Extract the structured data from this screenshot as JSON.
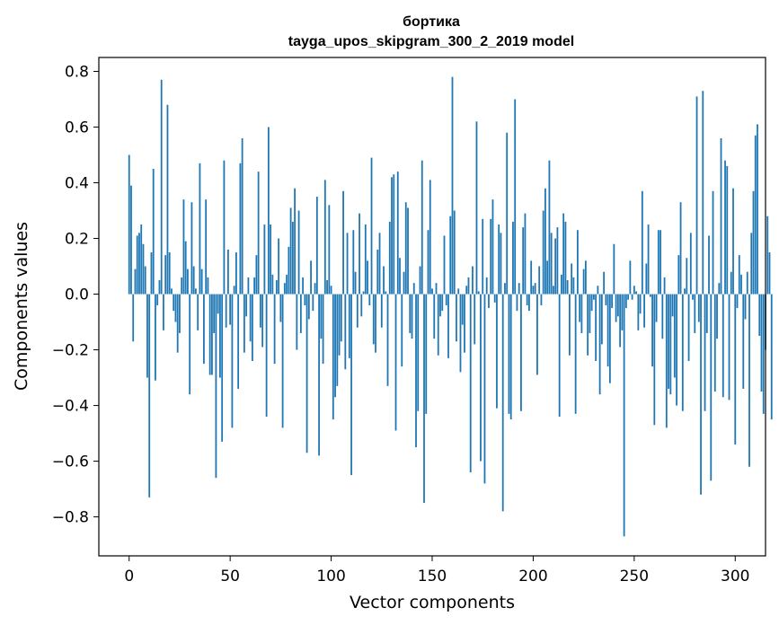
{
  "chart_data": {
    "type": "bar",
    "title": "бортика",
    "subtitle": "tayga_upos_skipgram_300_2_2019 model",
    "xlabel": "Vector components",
    "ylabel": "Components values",
    "xlim": [
      -15,
      315
    ],
    "ylim": [
      -0.94,
      0.85
    ],
    "xticks": [
      0,
      50,
      100,
      150,
      200,
      250,
      300
    ],
    "yticks": [
      -0.8,
      -0.6,
      -0.4,
      -0.2,
      0.0,
      0.2,
      0.4,
      0.6,
      0.8
    ],
    "xtick_labels": [
      "0",
      "50",
      "100",
      "150",
      "200",
      "250",
      "300"
    ],
    "ytick_labels": [
      "−0.8",
      "−0.6",
      "−0.4",
      "−0.2",
      "0.0",
      "0.2",
      "0.4",
      "0.6",
      "0.8"
    ],
    "grid": false,
    "bar_color": "#1f77b4",
    "values": [
      0.5,
      0.39,
      -0.17,
      0.09,
      0.21,
      0.22,
      0.25,
      0.18,
      0.1,
      -0.3,
      -0.73,
      0.15,
      0.45,
      -0.31,
      -0.04,
      0.05,
      0.77,
      -0.13,
      0.14,
      0.68,
      0.15,
      0.02,
      -0.06,
      -0.1,
      -0.21,
      -0.14,
      0.06,
      0.34,
      0.19,
      0.09,
      -0.36,
      0.33,
      0.1,
      0.02,
      -0.13,
      0.47,
      0.09,
      -0.25,
      0.34,
      0.06,
      -0.29,
      -0.29,
      -0.14,
      -0.66,
      -0.07,
      -0.3,
      -0.53,
      0.48,
      -0.12,
      0.16,
      -0.11,
      -0.48,
      0.03,
      0.15,
      -0.34,
      0.47,
      0.56,
      -0.21,
      -0.08,
      0.06,
      -0.17,
      -0.24,
      0.06,
      0.14,
      0.44,
      -0.12,
      -0.19,
      0.25,
      -0.44,
      0.6,
      0.25,
      0.07,
      -0.25,
      0.05,
      0.2,
      -0.1,
      -0.48,
      0.04,
      0.07,
      0.17,
      0.31,
      0.26,
      0.38,
      -0.2,
      0.3,
      -0.14,
      0.06,
      -0.04,
      -0.57,
      -0.09,
      0.12,
      -0.06,
      0.04,
      0.35,
      -0.58,
      -0.16,
      -0.25,
      0.41,
      0.05,
      0.32,
      0.03,
      -0.45,
      -0.37,
      -0.33,
      -0.22,
      -0.17,
      0.37,
      -0.27,
      0.22,
      -0.23,
      -0.65,
      0.23,
      0.08,
      -0.12,
      0.29,
      -0.08,
      0.01,
      0.25,
      0.12,
      -0.04,
      0.49,
      -0.18,
      -0.21,
      0.16,
      0.22,
      -0.12,
      0.1,
      0.01,
      -0.33,
      0.26,
      0.42,
      0.43,
      -0.49,
      0.44,
      0.13,
      -0.26,
      0.08,
      0.33,
      0.31,
      -0.14,
      -0.16,
      0.04,
      -0.55,
      -0.42,
      0.1,
      0.48,
      -0.75,
      -0.43,
      0.23,
      0.41,
      0.02,
      -0.16,
      0.04,
      -0.22,
      -0.08,
      -0.06,
      0.21,
      -0.04,
      -0.23,
      0.28,
      0.78,
      0.3,
      -0.17,
      0.02,
      -0.28,
      -0.11,
      -0.21,
      0.03,
      0.06,
      -0.64,
      0.1,
      -0.18,
      0.62,
      0.01,
      -0.6,
      0.27,
      -0.68,
      0.06,
      -0.05,
      0.27,
      0.34,
      -0.03,
      -0.41,
      0.25,
      0.22,
      -0.78,
      0.04,
      0.58,
      -0.43,
      -0.45,
      0.26,
      0.7,
      -0.06,
      0.04,
      -0.42,
      0.24,
      0.29,
      -0.04,
      -0.06,
      0.12,
      0.03,
      0.04,
      -0.29,
      0.1,
      -0.04,
      0.3,
      0.38,
      0.12,
      0.48,
      0.22,
      0.03,
      0.2,
      0.24,
      -0.44,
      0.07,
      0.29,
      0.26,
      0.05,
      -0.22,
      0.11,
      0.06,
      -0.43,
      0.23,
      -0.1,
      -0.14,
      0.09,
      0.12,
      -0.22,
      -0.14,
      -0.06,
      -0.02,
      -0.24,
      0.03,
      -0.36,
      -0.18,
      0.08,
      -0.04,
      -0.26,
      -0.32,
      -0.05,
      0.18,
      -0.1,
      -0.08,
      -0.19,
      -0.13,
      -0.87,
      -0.05,
      -0.02,
      0.12,
      -0.02,
      0.03,
      0.01,
      -0.13,
      -0.07,
      0.37,
      -0.12,
      0.11,
      0.25,
      -0.01,
      -0.26,
      -0.47,
      -0.1,
      0.23,
      0.23,
      -0.16,
      0.06,
      -0.48,
      -0.34,
      -0.36,
      -0.08,
      -0.3,
      -0.4,
      0.14,
      0.33,
      -0.42,
      0.02,
      0.13,
      -0.24,
      0.22,
      -0.02,
      -0.14,
      0.71,
      -0.1,
      -0.72,
      0.73,
      -0.42,
      -0.14,
      0.21,
      -0.67,
      0.37,
      -0.35,
      -0.16,
      0.04,
      0.56,
      -0.37,
      0.48,
      0.46,
      -0.38,
      0.08,
      0.38,
      -0.54,
      -0.05,
      0.14,
      0.07,
      -0.34,
      -0.09,
      0.08,
      -0.62,
      0.22,
      0.37,
      0.57,
      0.61,
      -0.15,
      -0.35,
      -0.43,
      -0.2,
      0.28,
      0.15,
      -0.45
    ]
  }
}
